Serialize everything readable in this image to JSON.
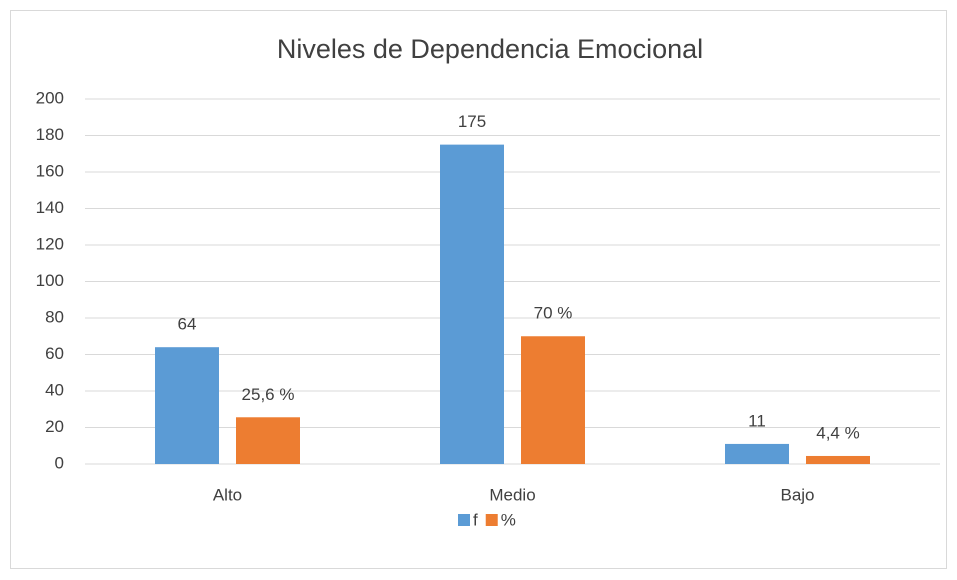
{
  "chart_data": {
    "type": "bar",
    "title": "Niveles de Dependencia Emocional",
    "categories": [
      "Alto",
      "Medio",
      "Bajo"
    ],
    "series": [
      {
        "name": "f",
        "color": "#5b9bd5",
        "values": [
          64,
          175,
          11
        ]
      },
      {
        "name": "%",
        "color": "#ed7d31",
        "values": [
          25.6,
          70,
          4.4
        ],
        "value_labels": [
          "25,6 %",
          "70 %",
          "4,4 %"
        ]
      }
    ],
    "ylim": [
      0,
      200
    ],
    "yticks": [
      0,
      20,
      40,
      60,
      80,
      100,
      120,
      140,
      160,
      180,
      200
    ],
    "grid": true,
    "legend": "bottom"
  }
}
